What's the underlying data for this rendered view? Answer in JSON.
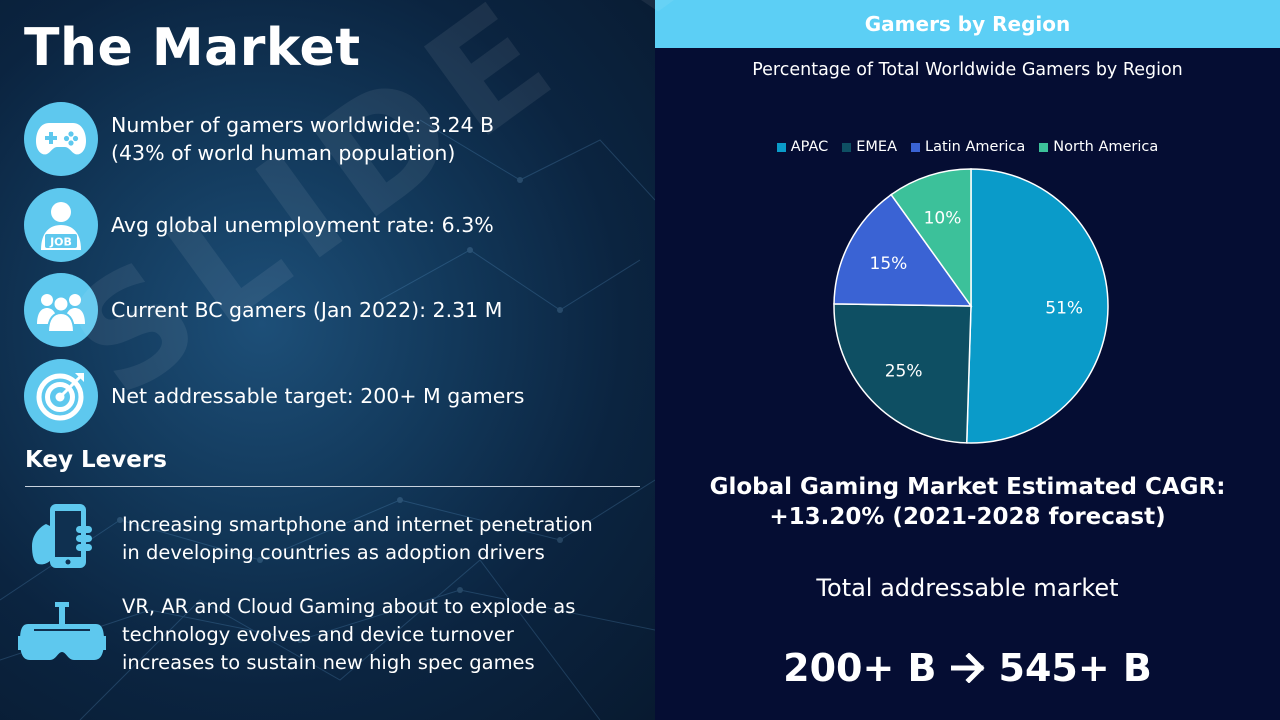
{
  "left": {
    "title": "The Market",
    "stats": [
      {
        "icon": "gamepad-icon",
        "lines": [
          "Number of gamers worldwide: 3.24 B",
          "(43% of world human population)"
        ]
      },
      {
        "icon": "job-person-icon",
        "lines": [
          "Avg global unemployment rate: 6.3%"
        ]
      },
      {
        "icon": "people-group-icon",
        "lines": [
          "Current BC gamers (Jan 2022): 2.31 M"
        ]
      },
      {
        "icon": "target-icon",
        "lines": [
          "Net addressable target: 200+ M gamers"
        ]
      }
    ],
    "levers_heading": "Key Levers",
    "levers": [
      {
        "icon": "smartphone-hand-icon",
        "lines": [
          "Increasing smartphone and internet penetration",
          "in developing countries as adoption drivers"
        ]
      },
      {
        "icon": "vr-headset-icon",
        "lines": [
          "VR, AR and Cloud Gaming about to explode as",
          "technology evolves and device turnover",
          "increases to sustain new high spec games"
        ]
      }
    ]
  },
  "right": {
    "header": "Gamers by Region",
    "cagr_line1": "Global Gaming Market Estimated CAGR:",
    "cagr_line2": "+13.20% (2021-2028 forecast)",
    "tam_label": "Total addressable market",
    "tam_from": "200+ B",
    "tam_to": "545+ B"
  },
  "watermark": "SLIDE VIVID",
  "chart_data": {
    "type": "pie",
    "title": "Percentage of Total Worldwide Gamers by Region",
    "legend_position": "top",
    "categories": [
      "APAC",
      "EMEA",
      "Latin America",
      "North America"
    ],
    "values": [
      51,
      25,
      15,
      10
    ],
    "labels": [
      "51%",
      "25%",
      "15%",
      "10%"
    ],
    "colors": [
      "#0a9bc9",
      "#0e4f63",
      "#3a63d4",
      "#3cc19a"
    ]
  }
}
